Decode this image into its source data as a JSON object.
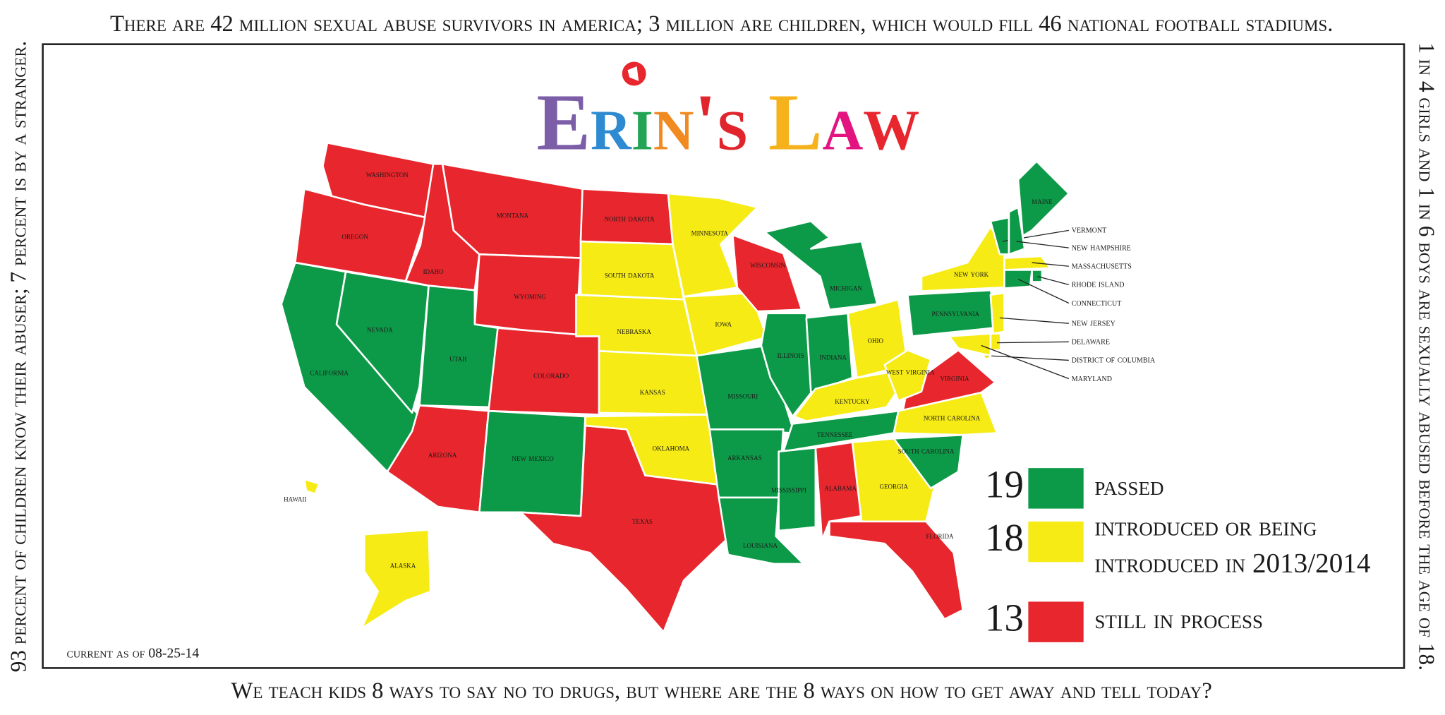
{
  "border": {
    "top": "There are 42 million sexual abuse survivors in america; 3 million are children, which would fill 46 national football stadiums.",
    "left": "93 percent of children know their abuser; 7 percent is by a stranger.",
    "right": "1 in 4 girls and 1 in 6 boys are sexually abused before the age of 18.",
    "bottom": "We teach kids 8 ways to say no to drugs, but where are the 8 ways on how to get away and tell today?"
  },
  "title": "Erin's Law",
  "title_colors": [
    "#7b5ea7",
    "#2e8bd1",
    "#23a455",
    "#f28a22",
    "#e0262c",
    "#e0262c",
    "#ffffff",
    "#f5b21d",
    "#e3147f",
    "#e8262d"
  ],
  "date_note": "current as of 08-25-14",
  "legend": [
    {
      "count": 19,
      "color": "#0d9a48",
      "lines": [
        "passed"
      ]
    },
    {
      "count": 18,
      "color": "#f6eb14",
      "lines": [
        "introduced or being",
        "introduced in 2013/2014"
      ]
    },
    {
      "count": 13,
      "color": "#e8262d",
      "lines": [
        "still in process"
      ]
    }
  ],
  "states": [
    {
      "name": "washington",
      "color": "#e8262d"
    },
    {
      "name": "oregon",
      "color": "#e8262d"
    },
    {
      "name": "california",
      "color": "#0d9a48"
    },
    {
      "name": "nevada",
      "color": "#0d9a48"
    },
    {
      "name": "idaho",
      "color": "#e8262d"
    },
    {
      "name": "montana",
      "color": "#e8262d"
    },
    {
      "name": "wyoming",
      "color": "#e8262d"
    },
    {
      "name": "utah",
      "color": "#0d9a48"
    },
    {
      "name": "colorado",
      "color": "#e8262d"
    },
    {
      "name": "arizona",
      "color": "#e8262d"
    },
    {
      "name": "new mexico",
      "color": "#0d9a48"
    },
    {
      "name": "north dakota",
      "color": "#e8262d"
    },
    {
      "name": "south dakota",
      "color": "#f6eb14"
    },
    {
      "name": "nebraska",
      "color": "#f6eb14"
    },
    {
      "name": "kansas",
      "color": "#f6eb14"
    },
    {
      "name": "oklahoma",
      "color": "#f6eb14"
    },
    {
      "name": "texas",
      "color": "#e8262d"
    },
    {
      "name": "minnesota",
      "color": "#f6eb14"
    },
    {
      "name": "iowa",
      "color": "#f6eb14"
    },
    {
      "name": "missouri",
      "color": "#0d9a48"
    },
    {
      "name": "arkansas",
      "color": "#0d9a48"
    },
    {
      "name": "louisiana",
      "color": "#0d9a48"
    },
    {
      "name": "wisconsin",
      "color": "#e8262d"
    },
    {
      "name": "illinois",
      "color": "#0d9a48"
    },
    {
      "name": "michigan",
      "color": "#0d9a48"
    },
    {
      "name": "indiana",
      "color": "#0d9a48"
    },
    {
      "name": "ohio",
      "color": "#f6eb14"
    },
    {
      "name": "kentucky",
      "color": "#f6eb14"
    },
    {
      "name": "tennessee",
      "color": "#0d9a48"
    },
    {
      "name": "mississippi",
      "color": "#0d9a48"
    },
    {
      "name": "alabama",
      "color": "#e8262d"
    },
    {
      "name": "georgia",
      "color": "#f6eb14"
    },
    {
      "name": "florida",
      "color": "#e8262d"
    },
    {
      "name": "south carolina",
      "color": "#0d9a48"
    },
    {
      "name": "north carolina",
      "color": "#f6eb14"
    },
    {
      "name": "virginia",
      "color": "#e8262d"
    },
    {
      "name": "west virginia",
      "color": "#f6eb14"
    },
    {
      "name": "pennsylvania",
      "color": "#0d9a48"
    },
    {
      "name": "new york",
      "color": "#f6eb14"
    },
    {
      "name": "maine",
      "color": "#0d9a48"
    },
    {
      "name": "vermont",
      "color": "#0d9a48"
    },
    {
      "name": "new hampshire",
      "color": "#0d9a48"
    },
    {
      "name": "massachusetts",
      "color": "#f6eb14"
    },
    {
      "name": "rhode island",
      "color": "#0d9a48"
    },
    {
      "name": "connecticut",
      "color": "#0d9a48"
    },
    {
      "name": "new jersey",
      "color": "#f6eb14"
    },
    {
      "name": "delaware",
      "color": "#f6eb14"
    },
    {
      "name": "district of columbia",
      "color": "#f6eb14"
    },
    {
      "name": "maryland",
      "color": "#f6eb14"
    },
    {
      "name": "alaska",
      "color": "#f6eb14"
    },
    {
      "name": "hawaii",
      "color": "#f6eb14"
    }
  ]
}
